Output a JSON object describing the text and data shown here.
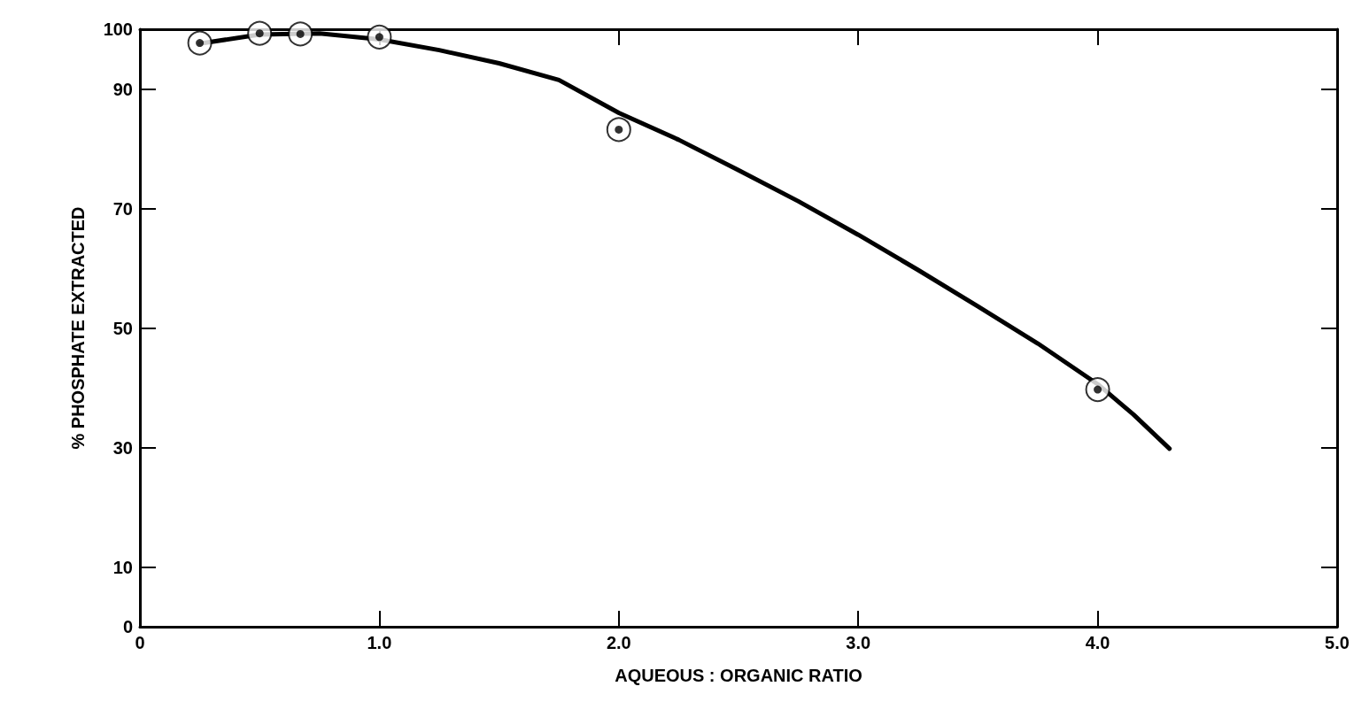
{
  "chart_data": {
    "type": "scatter",
    "xlabel": "AQUEOUS : ORGANIC RATIO",
    "ylabel": "% PHOSPHATE EXTRACTED",
    "xlim": [
      0,
      5
    ],
    "xticks": [
      0,
      {
        "value": 1,
        "label": "1.0"
      },
      {
        "value": 2,
        "label": "2.0"
      },
      {
        "value": 3,
        "label": "3.0"
      },
      {
        "value": 4,
        "label": "4.0"
      },
      {
        "value": 5,
        "label": "5.0"
      }
    ],
    "ylim": [
      0,
      100
    ],
    "yticks": [
      0,
      10,
      30,
      50,
      70,
      90,
      100
    ],
    "grid": false,
    "marker": "circle",
    "series": [
      {
        "color": "#000000",
        "x": [
          0.25,
          0.5,
          0.67,
          1.0,
          2.0,
          4.0
        ],
        "values": [
          97.7,
          99.3,
          99.2,
          98.7,
          83.2,
          39.7
        ]
      },
      {
        "type": "line",
        "color": "#000000",
        "line_style": "solid",
        "marker": "none",
        "x": [
          0.25,
          0.5,
          0.75,
          1.0,
          1.25,
          1.5,
          1.75,
          2.0,
          2.25,
          2.5,
          2.75,
          3.0,
          3.25,
          3.5,
          3.75,
          4.0,
          4.15,
          4.3
        ],
        "values": [
          97.6,
          99.1,
          99.3,
          98.3,
          96.5,
          94.3,
          91.5,
          86,
          81.5,
          76.4,
          71.2,
          65.6,
          59.7,
          53.6,
          47.4,
          40.6,
          35.5,
          29.8
        ]
      }
    ]
  }
}
